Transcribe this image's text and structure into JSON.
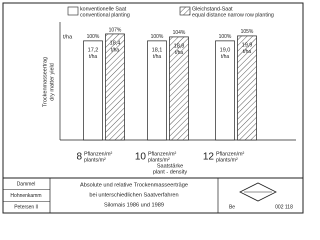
{
  "chart_data": {
    "type": "bar",
    "y_label": [
      "Trockenmasseertrag",
      "dry matter yield"
    ],
    "y_unit": "t/ha",
    "x_label": [
      "Saatstärke",
      "plant - density"
    ],
    "category_unit": [
      "Pflanzen/m²",
      "plants/m²"
    ],
    "categories": [
      "8",
      "10",
      "12"
    ],
    "ylim": [
      0,
      115
    ],
    "series": [
      {
        "name": "konventionelle Saat",
        "name_en": "conventional planting",
        "color": "#ffffff",
        "pattern": "none",
        "values": [
          100,
          100,
          100
        ],
        "value_labels": [
          "100%",
          "100%",
          "100%"
        ],
        "yield": [
          17.2,
          18.1,
          19.0
        ],
        "yield_labels": [
          "17,2",
          "18,1",
          "19,0"
        ]
      },
      {
        "name": "Gleichstand-Saat",
        "name_en": "equal distance narrow row planting",
        "color": "#ffffff",
        "pattern": "hatch",
        "values": [
          107,
          104,
          105
        ],
        "value_labels": [
          "107%",
          "104%",
          "105%"
        ],
        "yield": [
          18.4,
          18.8,
          19.9
        ],
        "yield_labels": [
          "18,4",
          "18,8",
          "19,9"
        ]
      }
    ]
  },
  "title_block": {
    "authors": [
      "Dammel",
      "Hohnenkamm",
      "Petersen ll"
    ],
    "title": [
      "Absolute und relative Trockenmasseerträge",
      "bei unterschiedlichen Saatverfahren",
      "Silomais 1986 und 1989"
    ],
    "mark": "Be",
    "number": "002 118"
  }
}
